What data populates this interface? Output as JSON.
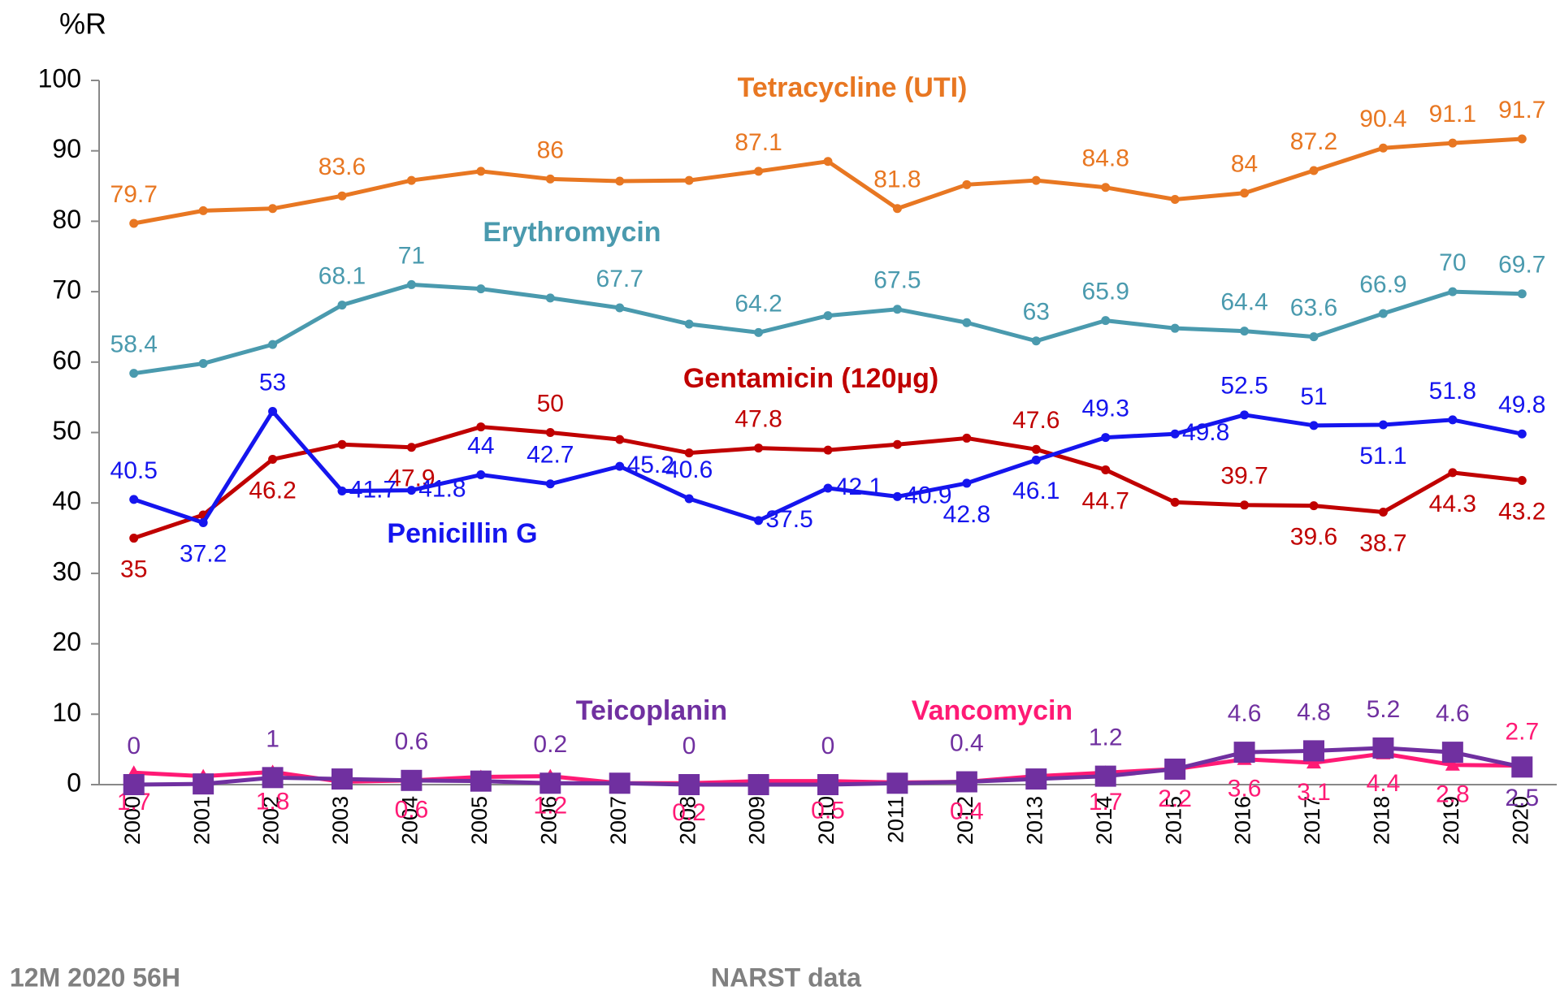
{
  "chart_data": {
    "type": "line",
    "y_label": "%R",
    "footer_left": "12M 2020 56H",
    "footer_right": "NARST data",
    "categories": [
      "2000",
      "2001",
      "2002",
      "2003",
      "2004",
      "2005",
      "2006",
      "2007",
      "2008",
      "2009",
      "2010",
      "2011",
      "2012",
      "2013",
      "2014",
      "2015",
      "2016",
      "2017",
      "2018",
      "2019",
      "2020"
    ],
    "ylim": [
      0,
      100
    ],
    "yticks": [
      0,
      10,
      20,
      30,
      40,
      50,
      60,
      70,
      80,
      90,
      100
    ],
    "grid": false,
    "series": [
      {
        "name": "Tetracycline (UTI)",
        "color": "#e87722",
        "marker": "circle",
        "values": [
          79.7,
          81.5,
          81.8,
          83.6,
          85.8,
          87.1,
          86,
          85.7,
          85.8,
          87.1,
          88.5,
          81.8,
          85.2,
          85.8,
          84.8,
          83.1,
          84,
          87.2,
          90.4,
          91.1,
          91.7
        ],
        "value_labels": [
          "79.7",
          null,
          null,
          "83.6",
          null,
          null,
          "86",
          null,
          null,
          "87.1",
          null,
          "81.8",
          null,
          null,
          "84.8",
          null,
          "84",
          "87.2",
          "90.4",
          "91.1",
          "91.7"
        ]
      },
      {
        "name": "Erythromycin",
        "color": "#4a9aae",
        "marker": "circle",
        "values": [
          58.4,
          59.8,
          62.5,
          68.1,
          71,
          70.4,
          69.1,
          67.7,
          65.4,
          64.2,
          66.6,
          67.5,
          65.6,
          63,
          65.9,
          64.8,
          64.4,
          63.6,
          66.9,
          70,
          69.7
        ],
        "value_labels": [
          "58.4",
          null,
          null,
          "68.1",
          "71",
          null,
          null,
          "67.7",
          null,
          "64.2",
          null,
          "67.5",
          null,
          "63",
          "65.9",
          null,
          "64.4",
          "63.6",
          "66.9",
          "70",
          "69.7"
        ]
      },
      {
        "name": "Gentamicin (120µg)",
        "color": "#c00000",
        "marker": "circle",
        "values": [
          35,
          38.3,
          46.2,
          48.3,
          47.9,
          50.8,
          50,
          49,
          47.1,
          47.8,
          47.5,
          48.3,
          49.2,
          47.6,
          44.7,
          40.1,
          39.7,
          39.6,
          38.7,
          44.3,
          43.2
        ],
        "value_labels": [
          "35",
          null,
          "46.2",
          null,
          "47.9",
          null,
          "50",
          null,
          null,
          "47.8",
          null,
          null,
          null,
          "47.6",
          "44.7",
          null,
          "39.7",
          "39.6",
          "38.7",
          "44.3",
          "43.2"
        ]
      },
      {
        "name": "Penicillin G",
        "color": "#1515ee",
        "marker": "circle",
        "values": [
          40.5,
          37.2,
          53,
          41.7,
          41.8,
          44,
          42.7,
          45.2,
          40.6,
          37.5,
          42.1,
          40.9,
          42.8,
          46.1,
          49.3,
          49.8,
          52.5,
          51,
          51.1,
          51.8,
          49.8
        ],
        "value_labels": [
          "40.5",
          "37.2",
          "53",
          "41.7",
          "41.8",
          "44",
          "42.7",
          "45.2",
          "40.6",
          "37.5",
          "42.1",
          "40.9",
          "42.8",
          "46.1",
          "49.3",
          "49.8",
          "52.5",
          "51",
          "51.1",
          "51.8",
          "49.8"
        ]
      },
      {
        "name": "Vancomycin",
        "color": "#ff1a75",
        "marker": "triangle",
        "values": [
          1.7,
          1.2,
          1.8,
          0.4,
          0.6,
          1.1,
          1.2,
          0.2,
          0.2,
          0.5,
          0.5,
          0.3,
          0.4,
          1.2,
          1.7,
          2.2,
          3.6,
          3.1,
          4.4,
          2.8,
          2.7
        ],
        "value_labels": [
          "1.7",
          null,
          "1.8",
          null,
          "0.6",
          null,
          "1.2",
          null,
          "0.2",
          null,
          "0.5",
          null,
          "0.4",
          null,
          "1.7",
          "2.2",
          "3.6",
          "3.1",
          "4.4",
          "2.8",
          "2.7"
        ]
      },
      {
        "name": "Teicoplanin",
        "color": "#7030a0",
        "marker": "square",
        "values": [
          0,
          0.1,
          1,
          0.8,
          0.6,
          0.5,
          0.2,
          0.2,
          0,
          0,
          0,
          0.2,
          0.4,
          0.8,
          1.2,
          2.2,
          4.6,
          4.8,
          5.2,
          4.6,
          2.5
        ],
        "value_labels": [
          "0",
          null,
          "1",
          null,
          "0.6",
          null,
          "0.2",
          null,
          "0",
          null,
          "0",
          null,
          "0.4",
          null,
          "1.2",
          null,
          "4.6",
          "4.8",
          "5.2",
          "4.6",
          "2.5"
        ]
      }
    ]
  }
}
